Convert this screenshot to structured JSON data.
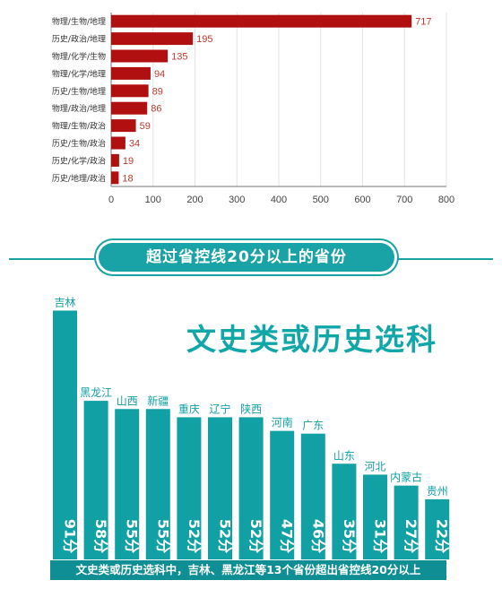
{
  "chart_data": [
    {
      "type": "bar",
      "orientation": "horizontal",
      "categories": [
        "物理/生物/地理",
        "历史/政治/地理",
        "物理/化学/生物",
        "物理/化学/地理",
        "历史/生物/地理",
        "物理/政治/地理",
        "物理/生物/政治",
        "历史/生物/政治",
        "历史/化学/政治",
        "历史/地理/政治"
      ],
      "values": [
        717,
        195,
        135,
        94,
        89,
        86,
        59,
        34,
        19,
        18
      ],
      "xlim": [
        0,
        800
      ],
      "xticks": [
        0,
        100,
        200,
        300,
        400,
        500,
        600,
        700,
        800
      ],
      "grid": true,
      "color": "#b01010"
    },
    {
      "type": "bar",
      "title": "超过省控线20分以上的省份",
      "subtitle": "文史类或历史选科",
      "categories": [
        "吉林",
        "黑龙江",
        "山西",
        "新疆",
        "重庆",
        "辽宁",
        "陕西",
        "河南",
        "广东",
        "山东",
        "河北",
        "内蒙古",
        "贵州"
      ],
      "values": [
        91,
        58,
        55,
        55,
        52,
        52,
        52,
        47,
        46,
        35,
        31,
        27,
        22
      ],
      "value_labels": [
        "91分",
        "58分",
        "55分",
        "55分",
        "52分",
        "52分",
        "52分",
        "47分",
        "46分",
        "35分",
        "31分",
        "27分",
        "22分"
      ],
      "annotation": "文史类或历史选科中，吉林、黑龙江等13个省份超出省控线20分以上",
      "color": "#11a0a3"
    }
  ]
}
